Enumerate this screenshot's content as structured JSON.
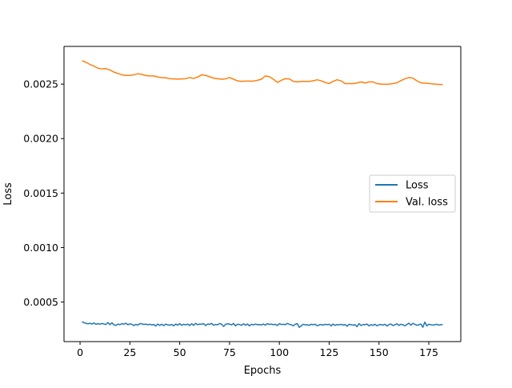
{
  "chart_data": {
    "type": "line",
    "title": "",
    "xlabel": "Epochs",
    "ylabel": "Loss",
    "xlim": [
      -8.05,
      191.05
    ],
    "ylim": [
      0.000137,
      0.002846
    ],
    "xticks": [
      0,
      25,
      50,
      75,
      100,
      125,
      150,
      175
    ],
    "xtick_labels": [
      "0",
      "25",
      "50",
      "75",
      "100",
      "125",
      "150",
      "175"
    ],
    "yticks": [
      0.0005,
      0.001,
      0.0015,
      0.002,
      0.0025
    ],
    "ytick_labels": [
      "0.0005",
      "0.0010",
      "0.0015",
      "0.0020",
      "0.0025"
    ],
    "grid": false,
    "legend_position": "center-right",
    "series": [
      {
        "name": "Loss",
        "color": "#1f77b4",
        "x": [
          1,
          2,
          3,
          4,
          5,
          6,
          7,
          8,
          9,
          10,
          11,
          12,
          13,
          14,
          15,
          16,
          17,
          18,
          19,
          20,
          21,
          22,
          23,
          24,
          25,
          26,
          27,
          28,
          29,
          30,
          31,
          32,
          33,
          34,
          35,
          36,
          37,
          38,
          39,
          40,
          41,
          42,
          43,
          44,
          45,
          46,
          47,
          48,
          49,
          50,
          51,
          52,
          53,
          54,
          55,
          56,
          57,
          58,
          59,
          60,
          61,
          62,
          63,
          64,
          65,
          66,
          67,
          68,
          69,
          70,
          71,
          72,
          73,
          74,
          75,
          76,
          77,
          78,
          79,
          80,
          81,
          82,
          83,
          84,
          85,
          86,
          87,
          88,
          89,
          90,
          91,
          92,
          93,
          94,
          95,
          96,
          97,
          98,
          99,
          100,
          101,
          102,
          103,
          104,
          105,
          106,
          107,
          108,
          109,
          110,
          111,
          112,
          113,
          114,
          115,
          116,
          117,
          118,
          119,
          120,
          121,
          122,
          123,
          124,
          125,
          126,
          127,
          128,
          129,
          130,
          131,
          132,
          133,
          134,
          135,
          136,
          137,
          138,
          139,
          140,
          141,
          142,
          143,
          144,
          145,
          146,
          147,
          148,
          149,
          150,
          151,
          152,
          153,
          154,
          155,
          156,
          157,
          158,
          159,
          160,
          161,
          162,
          163,
          164,
          165,
          166,
          167,
          168,
          169,
          170,
          171,
          172,
          173,
          174,
          175,
          176,
          177,
          178,
          179,
          180,
          181,
          182
        ],
        "y": [
          0.00032,
          0.00031,
          0.000305,
          0.0003,
          0.000305,
          0.000298,
          0.000308,
          0.000296,
          0.000302,
          0.000296,
          0.000304,
          0.000298,
          0.000294,
          0.000312,
          0.000292,
          0.00031,
          0.00029,
          0.000286,
          0.000298,
          0.000292,
          0.000302,
          0.000296,
          0.000306,
          0.000292,
          0.0003,
          0.000296,
          0.000284,
          0.000296,
          0.000288,
          0.000302,
          0.0003,
          0.000294,
          0.000298,
          0.000292,
          0.000296,
          0.00029,
          0.000294,
          0.00028,
          0.000298,
          0.000286,
          0.000296,
          0.000284,
          0.000298,
          0.00029,
          0.000288,
          0.000294,
          0.000282,
          0.000298,
          0.000288,
          0.000302,
          0.000286,
          0.000296,
          0.00029,
          0.000298,
          0.000284,
          0.000302,
          0.000286,
          0.000304,
          0.000292,
          0.000298,
          0.000296,
          0.000302,
          0.000284,
          0.000298,
          0.000296,
          0.000304,
          0.000288,
          0.000294,
          0.000292,
          0.000302,
          0.000298,
          0.000276,
          0.000296,
          0.0003,
          0.000298,
          0.00029,
          0.000304,
          0.000282,
          0.000296,
          0.000294,
          0.000286,
          0.0003,
          0.000288,
          0.000298,
          0.000282,
          0.000296,
          0.00029,
          0.000298,
          0.000292,
          0.000294,
          0.00029,
          0.000298,
          0.000288,
          0.000302,
          0.000294,
          0.000298,
          0.000292,
          0.000296,
          0.000284,
          0.000302,
          0.000294,
          0.000296,
          0.000292,
          0.000304,
          0.000296,
          0.000292,
          0.000282,
          0.000296,
          0.000302,
          0.000268,
          0.000282,
          0.000296,
          0.00029,
          0.000292,
          0.000286,
          0.000296,
          0.000292,
          0.000296,
          0.000282,
          0.00029,
          0.000294,
          0.000288,
          0.000296,
          0.000292,
          0.000296,
          0.000282,
          0.000298,
          0.000286,
          0.000294,
          0.00029,
          0.000296,
          0.000288,
          0.000294,
          0.000278,
          0.000296,
          0.000292,
          0.000288,
          0.000292,
          0.000274,
          0.000302,
          0.000284,
          0.000294,
          0.000292,
          0.000298,
          0.000282,
          0.000292,
          0.000286,
          0.000296,
          0.000282,
          0.000292,
          0.000294,
          0.000288,
          0.000296,
          0.00028,
          0.000294,
          0.000298,
          0.000284,
          0.000292,
          0.0003,
          0.000286,
          0.000296,
          0.000292,
          0.000282,
          0.000294,
          0.000306,
          0.000288,
          0.000304,
          0.000296,
          0.000286,
          0.000292,
          0.000298,
          0.000268,
          0.000316,
          0.000282,
          0.000296,
          0.000292,
          0.000288,
          0.000292,
          0.000296,
          0.000288,
          0.000292,
          0.000294
        ],
        "hidden_note": ""
      },
      {
        "name": "Val. loss",
        "color": "#ff7f0e",
        "x": [
          1,
          3,
          5,
          7,
          9,
          11,
          13,
          15,
          17,
          19,
          21,
          23,
          25,
          27,
          29,
          31,
          33,
          35,
          37,
          39,
          41,
          43,
          45,
          47,
          49,
          51,
          53,
          55,
          57,
          59,
          61,
          63,
          65,
          67,
          69,
          71,
          73,
          75,
          77,
          79,
          81,
          83,
          85,
          87,
          89,
          91,
          93,
          95,
          97,
          99,
          101,
          103,
          105,
          107,
          109,
          111,
          113,
          115,
          117,
          119,
          121,
          123,
          125,
          127,
          129,
          131,
          133,
          135,
          137,
          139,
          141,
          143,
          145,
          147,
          149,
          151,
          153,
          155,
          157,
          159,
          161,
          163,
          165,
          167,
          169,
          171,
          173,
          175,
          177,
          179,
          181,
          182
        ],
        "y": [
          0.002715,
          0.0027,
          0.00268,
          0.002665,
          0.002645,
          0.00264,
          0.002642,
          0.00263,
          0.00261,
          0.002598,
          0.002585,
          0.00258,
          0.00258,
          0.002585,
          0.002595,
          0.00259,
          0.002578,
          0.002575,
          0.002575,
          0.002565,
          0.00256,
          0.002558,
          0.00255,
          0.002548,
          0.002546,
          0.002548,
          0.00255,
          0.00256,
          0.002552,
          0.002565,
          0.002585,
          0.00258,
          0.002568,
          0.002555,
          0.00255,
          0.002545,
          0.002548,
          0.00256,
          0.002545,
          0.00253,
          0.002525,
          0.002528,
          0.002528,
          0.002528,
          0.002535,
          0.002545,
          0.002575,
          0.002568,
          0.002545,
          0.002515,
          0.002535,
          0.00255,
          0.002548,
          0.002525,
          0.00252,
          0.002525,
          0.002525,
          0.002525,
          0.00253,
          0.00254,
          0.00253,
          0.002515,
          0.002505,
          0.002525,
          0.00254,
          0.00253,
          0.002505,
          0.002505,
          0.002505,
          0.00251,
          0.00252,
          0.00251,
          0.00252,
          0.00252,
          0.002505,
          0.0025,
          0.002498,
          0.0025,
          0.002505,
          0.002512,
          0.002532,
          0.002548,
          0.00256,
          0.002555,
          0.00253,
          0.002512,
          0.002508,
          0.002506,
          0.002502,
          0.002498,
          0.002496,
          0.002495
        ]
      }
    ]
  }
}
